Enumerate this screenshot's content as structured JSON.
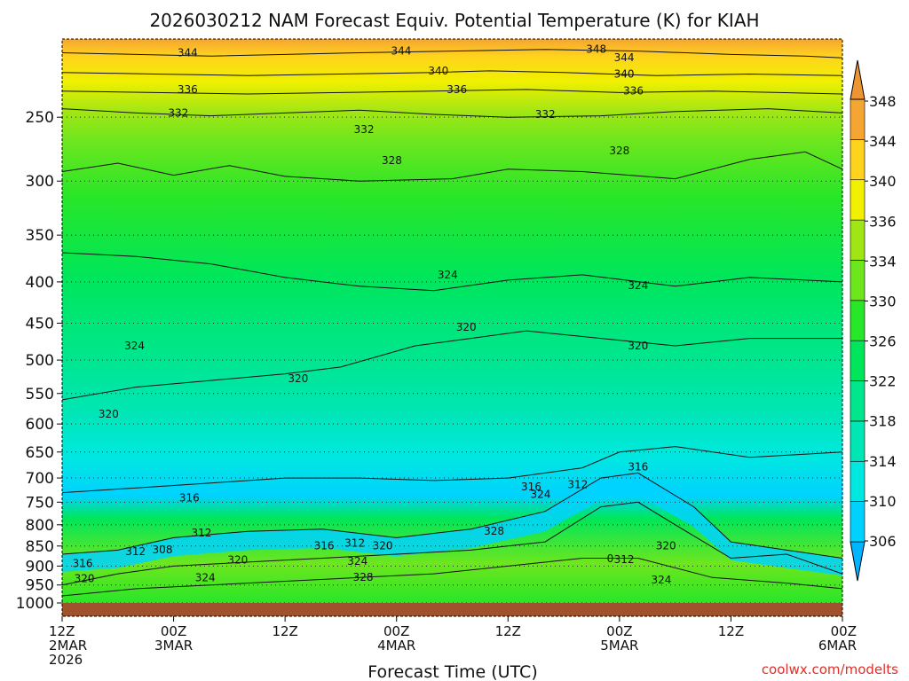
{
  "chart_data": {
    "type": "heatmap",
    "title": "2026030212 NAM Forecast Equiv. Potential Temperature (K) for KIAH",
    "xlabel": "Forecast Time (UTC)",
    "ylabel": "",
    "y_scale": "log-pressure (inverted)",
    "ylim": [
      1000,
      200
    ],
    "y_ticks": [
      250,
      300,
      350,
      400,
      450,
      500,
      550,
      600,
      650,
      700,
      750,
      800,
      850,
      900,
      950,
      1000
    ],
    "x_ticks": [
      {
        "hour": 0,
        "labels": [
          "12Z",
          "2MAR",
          "2026"
        ]
      },
      {
        "hour": 12,
        "labels": [
          "00Z",
          "3MAR"
        ]
      },
      {
        "hour": 24,
        "labels": [
          "12Z"
        ]
      },
      {
        "hour": 36,
        "labels": [
          "00Z",
          "4MAR"
        ]
      },
      {
        "hour": 48,
        "labels": [
          "12Z"
        ]
      },
      {
        "hour": 60,
        "labels": [
          "00Z",
          "5MAR"
        ]
      },
      {
        "hour": 72,
        "labels": [
          "12Z"
        ]
      },
      {
        "hour": 84,
        "labels": [
          "00Z",
          "6MAR"
        ]
      }
    ],
    "xlim": [
      0,
      84
    ],
    "colorbar": {
      "labels": [
        306,
        310,
        314,
        318,
        322,
        326,
        330,
        334,
        336,
        340,
        344,
        348
      ],
      "colors": [
        "#00b4ff",
        "#00d2ff",
        "#00e8e0",
        "#00e6b4",
        "#00e68c",
        "#00e65a",
        "#28e628",
        "#6ee61e",
        "#a0e614",
        "#f0f000",
        "#ffd21e",
        "#f5a532",
        "#eb9632"
      ]
    },
    "contours": [
      {
        "value": 344,
        "label": "344",
        "points": [
          [
            0,
            208
          ],
          [
            8,
            209
          ],
          [
            16,
            210
          ],
          [
            24,
            209
          ],
          [
            32,
            208
          ],
          [
            42,
            207
          ],
          [
            52,
            206
          ],
          [
            62,
            207
          ],
          [
            72,
            209
          ],
          [
            80,
            210
          ],
          [
            84,
            211
          ]
        ]
      },
      {
        "value": 340,
        "label": "340",
        "points": [
          [
            0,
            220
          ],
          [
            10,
            221
          ],
          [
            20,
            222
          ],
          [
            30,
            221
          ],
          [
            40,
            220
          ],
          [
            46,
            219
          ],
          [
            54,
            220
          ],
          [
            64,
            222
          ],
          [
            74,
            221
          ],
          [
            84,
            222
          ]
        ]
      },
      {
        "value": 336,
        "label": "336",
        "points": [
          [
            0,
            232
          ],
          [
            10,
            233
          ],
          [
            20,
            234
          ],
          [
            30,
            233
          ],
          [
            40,
            232
          ],
          [
            50,
            231
          ],
          [
            60,
            233
          ],
          [
            70,
            232
          ],
          [
            84,
            234
          ]
        ]
      },
      {
        "value": 332,
        "label": "332",
        "points": [
          [
            0,
            244
          ],
          [
            8,
            247
          ],
          [
            16,
            249
          ],
          [
            24,
            247
          ],
          [
            32,
            245
          ],
          [
            40,
            248
          ],
          [
            48,
            250
          ],
          [
            58,
            249
          ],
          [
            66,
            246
          ],
          [
            76,
            244
          ],
          [
            84,
            247
          ]
        ]
      },
      {
        "value": 328,
        "label": "328",
        "points": [
          [
            0,
            292
          ],
          [
            6,
            285
          ],
          [
            12,
            295
          ],
          [
            18,
            287
          ],
          [
            24,
            296
          ],
          [
            32,
            300
          ],
          [
            42,
            298
          ],
          [
            48,
            290
          ],
          [
            56,
            292
          ],
          [
            66,
            298
          ],
          [
            74,
            282
          ],
          [
            80,
            276
          ],
          [
            84,
            290
          ]
        ]
      },
      {
        "value": 324,
        "label": "324",
        "points": [
          [
            0,
            368
          ],
          [
            8,
            372
          ],
          [
            16,
            380
          ],
          [
            24,
            395
          ],
          [
            32,
            405
          ],
          [
            40,
            410
          ],
          [
            48,
            398
          ],
          [
            56,
            392
          ],
          [
            66,
            405
          ],
          [
            74,
            395
          ],
          [
            84,
            400
          ]
        ]
      },
      {
        "value": 320,
        "label": "320",
        "points": [
          [
            0,
            560
          ],
          [
            8,
            540
          ],
          [
            16,
            530
          ],
          [
            24,
            520
          ],
          [
            30,
            510
          ],
          [
            38,
            480
          ],
          [
            44,
            470
          ],
          [
            50,
            460
          ],
          [
            58,
            470
          ],
          [
            66,
            480
          ],
          [
            74,
            470
          ],
          [
            84,
            470
          ]
        ]
      },
      {
        "value": 316,
        "label": "316",
        "points": [
          [
            0,
            730
          ],
          [
            8,
            720
          ],
          [
            16,
            710
          ],
          [
            24,
            700
          ],
          [
            32,
            700
          ],
          [
            40,
            705
          ],
          [
            48,
            700
          ],
          [
            56,
            680
          ],
          [
            60,
            650
          ],
          [
            66,
            640
          ],
          [
            74,
            660
          ],
          [
            84,
            650
          ]
        ]
      },
      {
        "value": 312,
        "label": "312",
        "points": [
          [
            0,
            870
          ],
          [
            6,
            860
          ],
          [
            12,
            830
          ],
          [
            20,
            815
          ],
          [
            28,
            810
          ],
          [
            36,
            830
          ],
          [
            44,
            810
          ],
          [
            52,
            770
          ],
          [
            58,
            700
          ],
          [
            62,
            690
          ],
          [
            68,
            760
          ],
          [
            72,
            840
          ],
          [
            78,
            860
          ],
          [
            84,
            880
          ]
        ]
      },
      {
        "value": 320,
        "label": "320",
        "points": [
          [
            0,
            950
          ],
          [
            6,
            920
          ],
          [
            12,
            900
          ],
          [
            20,
            890
          ],
          [
            28,
            880
          ],
          [
            36,
            870
          ],
          [
            44,
            860
          ],
          [
            52,
            840
          ],
          [
            58,
            760
          ],
          [
            62,
            750
          ],
          [
            66,
            800
          ],
          [
            72,
            880
          ],
          [
            78,
            870
          ],
          [
            84,
            920
          ]
        ]
      },
      {
        "value": 324,
        "label": "324",
        "points": [
          [
            0,
            980
          ],
          [
            8,
            960
          ],
          [
            16,
            950
          ],
          [
            24,
            940
          ],
          [
            32,
            930
          ],
          [
            40,
            920
          ],
          [
            48,
            900
          ],
          [
            56,
            880
          ],
          [
            62,
            880
          ],
          [
            70,
            930
          ],
          [
            78,
            945
          ],
          [
            84,
            960
          ]
        ]
      }
    ],
    "contour_labels": [
      {
        "text": "344",
        "h": 13.5,
        "p": 208
      },
      {
        "text": "344",
        "h": 36.5,
        "p": 207
      },
      {
        "text": "348",
        "h": 57.5,
        "p": 206
      },
      {
        "text": "344",
        "h": 60.5,
        "p": 211
      },
      {
        "text": "340",
        "h": 40.5,
        "p": 219
      },
      {
        "text": "340",
        "h": 60.5,
        "p": 221
      },
      {
        "text": "336",
        "h": 13.5,
        "p": 231
      },
      {
        "text": "336",
        "h": 42.5,
        "p": 231
      },
      {
        "text": "336",
        "h": 61.5,
        "p": 232
      },
      {
        "text": "332",
        "h": 12.5,
        "p": 247
      },
      {
        "text": "332",
        "h": 32.5,
        "p": 259
      },
      {
        "text": "332",
        "h": 52,
        "p": 248
      },
      {
        "text": "328",
        "h": 35.5,
        "p": 283
      },
      {
        "text": "328",
        "h": 60,
        "p": 275
      },
      {
        "text": "324",
        "h": 41.5,
        "p": 392
      },
      {
        "text": "324",
        "h": 62,
        "p": 404
      },
      {
        "text": "324",
        "h": 7.8,
        "p": 480
      },
      {
        "text": "320",
        "h": 43.5,
        "p": 455
      },
      {
        "text": "320",
        "h": 62,
        "p": 480
      },
      {
        "text": "320",
        "h": 25.4,
        "p": 527
      },
      {
        "text": "320",
        "h": 5,
        "p": 583
      },
      {
        "text": "316",
        "h": 62,
        "p": 678
      },
      {
        "text": "316",
        "h": 50.5,
        "p": 718
      },
      {
        "text": "312",
        "h": 55.5,
        "p": 713
      },
      {
        "text": "316",
        "h": 13.7,
        "p": 741
      },
      {
        "text": "324",
        "h": 51.5,
        "p": 733
      },
      {
        "text": "312",
        "h": 15,
        "p": 819
      },
      {
        "text": "328",
        "h": 46.5,
        "p": 815
      },
      {
        "text": "312",
        "h": 7.9,
        "p": 863
      },
      {
        "text": "308",
        "h": 10.8,
        "p": 859
      },
      {
        "text": "316",
        "h": 28.2,
        "p": 849
      },
      {
        "text": "312",
        "h": 31.5,
        "p": 843
      },
      {
        "text": "320",
        "h": 34.5,
        "p": 849
      },
      {
        "text": "320",
        "h": 65,
        "p": 849
      },
      {
        "text": "320",
        "h": 18.9,
        "p": 885
      },
      {
        "text": "324",
        "h": 31.8,
        "p": 888
      },
      {
        "text": "316",
        "h": 2.2,
        "p": 893
      },
      {
        "text": "0",
        "h": 59,
        "p": 881
      },
      {
        "text": "312",
        "h": 60.5,
        "p": 883
      },
      {
        "text": "320",
        "h": 2.4,
        "p": 933
      },
      {
        "text": "324",
        "h": 15.4,
        "p": 930
      },
      {
        "text": "328",
        "h": 32.4,
        "p": 929
      },
      {
        "text": "324",
        "h": 64.5,
        "p": 936
      }
    ]
  },
  "watermark": "coolwx.com/modelts"
}
